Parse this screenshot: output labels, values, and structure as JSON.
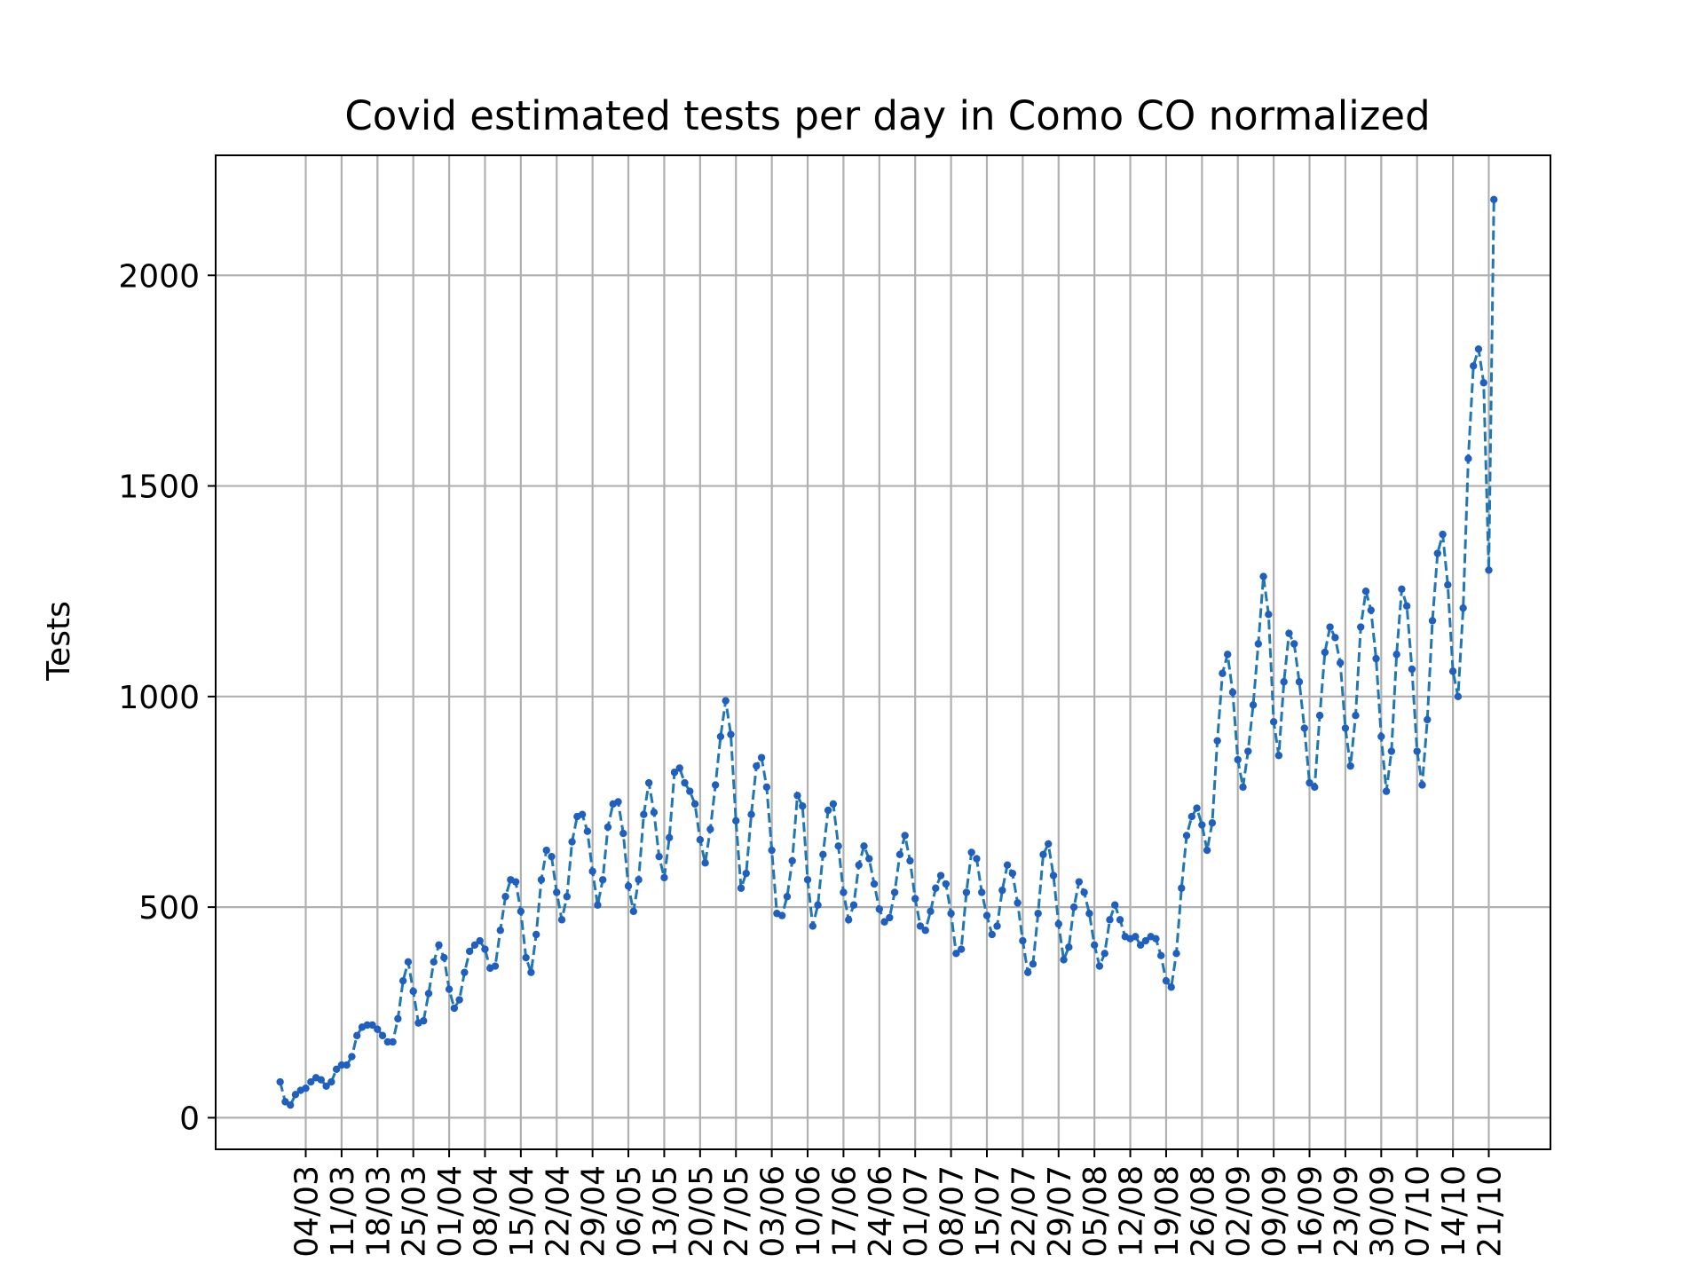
{
  "chart_data": {
    "type": "line",
    "title": "Covid estimated tests per day in Como CO normalized",
    "xlabel": "",
    "ylabel": "Tests",
    "ylim": [
      -75,
      2285
    ],
    "yticks": [
      0,
      500,
      1000,
      1500,
      2000
    ],
    "grid": true,
    "legend": "none",
    "x_tick_labels": [
      "04/03",
      "11/03",
      "18/03",
      "25/03",
      "01/04",
      "08/04",
      "15/04",
      "22/04",
      "29/04",
      "06/05",
      "13/05",
      "20/05",
      "27/05",
      "03/06",
      "10/06",
      "17/06",
      "24/06",
      "01/07",
      "08/07",
      "15/07",
      "22/07",
      "29/07",
      "05/08",
      "12/08",
      "19/08",
      "26/08",
      "02/09",
      "09/09",
      "16/09",
      "23/09",
      "30/09",
      "07/10",
      "14/10",
      "21/10"
    ],
    "series": [
      {
        "color": "#1f77b4",
        "marker_color": "#1f5fbf",
        "start_date": "2020-02-28",
        "values": [
          85,
          38,
          30,
          55,
          65,
          70,
          85,
          95,
          90,
          75,
          85,
          115,
          125,
          125,
          145,
          195,
          215,
          220,
          220,
          210,
          195,
          180,
          180,
          235,
          325,
          370,
          300,
          225,
          230,
          295,
          370,
          410,
          380,
          305,
          260,
          280,
          345,
          395,
          410,
          420,
          400,
          355,
          360,
          445,
          525,
          565,
          560,
          490,
          380,
          345,
          435,
          565,
          635,
          620,
          535,
          470,
          525,
          655,
          715,
          720,
          680,
          585,
          505,
          565,
          690,
          745,
          750,
          675,
          550,
          490,
          565,
          720,
          795,
          725,
          620,
          570,
          665,
          820,
          830,
          795,
          775,
          745,
          660,
          605,
          685,
          790,
          905,
          990,
          910,
          705,
          545,
          580,
          720,
          835,
          855,
          785,
          635,
          485,
          480,
          525,
          610,
          765,
          740,
          565,
          455,
          505,
          625,
          730,
          745,
          645,
          535,
          470,
          505,
          600,
          645,
          615,
          555,
          495,
          465,
          475,
          535,
          625,
          670,
          610,
          520,
          455,
          445,
          490,
          545,
          575,
          555,
          485,
          390,
          400,
          535,
          630,
          615,
          535,
          480,
          435,
          455,
          540,
          600,
          580,
          510,
          420,
          345,
          365,
          485,
          625,
          650,
          575,
          460,
          375,
          405,
          500,
          560,
          535,
          485,
          410,
          360,
          390,
          470,
          505,
          470,
          430,
          425,
          430,
          410,
          420,
          430,
          425,
          385,
          325,
          310,
          390,
          545,
          670,
          715,
          735,
          695,
          635,
          700,
          895,
          1055,
          1100,
          1010,
          850,
          785,
          870,
          980,
          1125,
          1285,
          1195,
          940,
          860,
          1035,
          1150,
          1125,
          1035,
          925,
          795,
          785,
          955,
          1105,
          1165,
          1140,
          1080,
          925,
          835,
          955,
          1165,
          1250,
          1205,
          1090,
          905,
          775,
          870,
          1100,
          1255,
          1215,
          1065,
          870,
          790,
          945,
          1180,
          1340,
          1385,
          1265,
          1060,
          1000,
          1210,
          1565,
          1785,
          1825,
          1745,
          1300,
          2180
        ]
      }
    ]
  }
}
